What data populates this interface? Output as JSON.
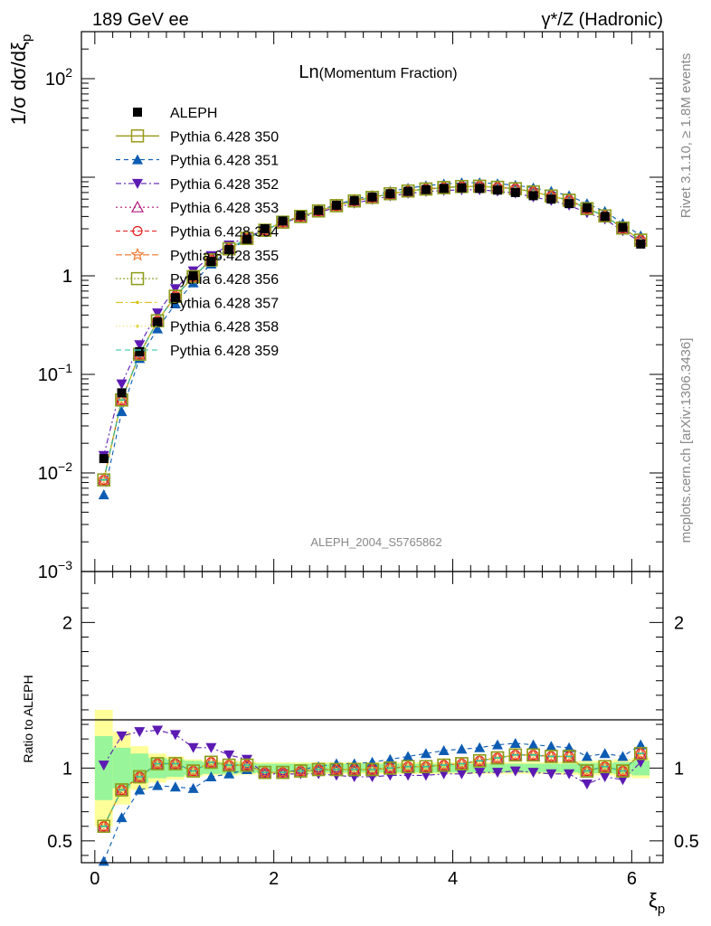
{
  "header": {
    "left": "189 GeV ee",
    "right": "γ*/Z (Hadronic)"
  },
  "side_text": {
    "rivet": "Rivet 3.1.10, ≥ 1.8M events",
    "mcplots": "mcplots.cern.ch [arXiv:1306.3436]"
  },
  "chart_data": {
    "type": "scatter",
    "title": "Ln(Momentum Fraction)",
    "title_main": "Ln",
    "title_sub": "(Momentum Fraction)",
    "analysis_id": "ALEPH_2004_S5765862",
    "xlabel": "ξp",
    "ylabel": "1/σ dσ/dξp",
    "ratio_ylabel": "Ratio to ALEPH",
    "xlim": [
      -0.15,
      6.35
    ],
    "ylim": [
      0.001,
      300
    ],
    "yscale": "log",
    "ratio_ylim": [
      0.35,
      2.35
    ],
    "x_ticks": [
      "0",
      "2",
      "4",
      "6"
    ],
    "y_ticks": [
      "10^-3",
      "10^-2",
      "10^-1",
      "1",
      "10",
      "10^2"
    ],
    "ratio_ticks": [
      "0.5",
      "1",
      "2"
    ],
    "legend_position": "top-left",
    "x": [
      0.1,
      0.3,
      0.5,
      0.7,
      0.9,
      1.1,
      1.3,
      1.5,
      1.7,
      1.9,
      2.1,
      2.3,
      2.5,
      2.7,
      2.9,
      3.1,
      3.3,
      3.5,
      3.7,
      3.9,
      4.1,
      4.3,
      4.5,
      4.7,
      4.9,
      5.1,
      5.3,
      5.5,
      5.7,
      5.9,
      6.1
    ],
    "data": {
      "name": "ALEPH",
      "values": [
        0.014,
        0.065,
        0.17,
        0.34,
        0.6,
        1.0,
        1.4,
        1.85,
        2.35,
        3.0,
        3.6,
        4.1,
        4.6,
        5.2,
        5.8,
        6.3,
        6.8,
        7.2,
        7.5,
        7.7,
        7.8,
        7.7,
        7.4,
        7.0,
        6.5,
        6.0,
        5.4,
        4.9,
        4.0,
        3.1,
        2.1
      ]
    },
    "series": [
      {
        "name": "Pythia 6.428 350",
        "values": [
          0.0085,
          0.055,
          0.16,
          0.35,
          0.62,
          0.98,
          1.45,
          1.88,
          2.4,
          2.9,
          3.5,
          4.0,
          4.55,
          5.15,
          5.75,
          6.25,
          6.8,
          7.25,
          7.6,
          7.85,
          8.05,
          8.1,
          7.9,
          7.65,
          7.1,
          6.45,
          5.85,
          4.8,
          4.05,
          3.05,
          2.3
        ],
        "ratio": [
          0.6,
          0.85,
          0.94,
          1.03,
          1.03,
          0.98,
          1.04,
          1.02,
          1.02,
          0.97,
          0.97,
          0.98,
          0.99,
          0.99,
          0.99,
          0.99,
          1.0,
          1.01,
          1.01,
          1.02,
          1.03,
          1.05,
          1.07,
          1.09,
          1.09,
          1.08,
          1.08,
          0.98,
          1.01,
          0.98,
          1.1
        ]
      },
      {
        "name": "Pythia 6.428 351",
        "values": [
          0.006,
          0.042,
          0.145,
          0.29,
          0.52,
          0.85,
          1.32,
          1.8,
          2.35,
          2.95,
          3.5,
          4.05,
          4.6,
          5.3,
          5.95,
          6.55,
          7.2,
          7.75,
          8.2,
          8.55,
          8.8,
          8.8,
          8.6,
          8.3,
          7.8,
          7.2,
          6.5,
          5.4,
          4.5,
          3.4,
          2.55
        ],
        "ratio": [
          0.36,
          0.66,
          0.85,
          0.88,
          0.87,
          0.86,
          0.94,
          0.96,
          0.99,
          0.96,
          0.97,
          0.99,
          1.01,
          1.03,
          1.03,
          1.04,
          1.06,
          1.08,
          1.1,
          1.12,
          1.13,
          1.14,
          1.16,
          1.17,
          1.16,
          1.15,
          1.14,
          1.08,
          1.1,
          1.08,
          1.16
        ]
      },
      {
        "name": "Pythia 6.428 352",
        "values": [
          0.015,
          0.08,
          0.2,
          0.42,
          0.74,
          1.12,
          1.6,
          2.05,
          2.5,
          2.9,
          3.45,
          3.9,
          4.4,
          4.95,
          5.45,
          5.95,
          6.45,
          6.85,
          7.15,
          7.35,
          7.45,
          7.45,
          7.2,
          6.9,
          6.3,
          5.8,
          5.2,
          4.35,
          3.75,
          2.85,
          2.2
        ],
        "ratio": [
          1.02,
          1.22,
          1.25,
          1.26,
          1.23,
          1.14,
          1.14,
          1.09,
          1.06,
          0.96,
          0.96,
          0.96,
          0.96,
          0.95,
          0.94,
          0.94,
          0.95,
          0.95,
          0.95,
          0.96,
          0.96,
          0.97,
          0.97,
          0.98,
          0.97,
          0.96,
          0.96,
          0.89,
          0.94,
          0.92,
          1.04
        ]
      },
      {
        "name": "Pythia 6.428 353",
        "values": [
          0.0085,
          0.055,
          0.16,
          0.35,
          0.62,
          0.98,
          1.45,
          1.88,
          2.4,
          2.9,
          3.5,
          4.0,
          4.55,
          5.15,
          5.75,
          6.25,
          6.8,
          7.25,
          7.6,
          7.85,
          8.05,
          8.1,
          7.9,
          7.65,
          7.1,
          6.45,
          5.85,
          4.8,
          4.05,
          3.05,
          2.3
        ],
        "ratio": [
          0.6,
          0.85,
          0.94,
          1.03,
          1.03,
          0.98,
          1.04,
          1.02,
          1.02,
          0.97,
          0.97,
          0.98,
          0.99,
          0.99,
          0.99,
          0.99,
          1.0,
          1.01,
          1.01,
          1.02,
          1.03,
          1.05,
          1.07,
          1.09,
          1.09,
          1.08,
          1.08,
          0.98,
          1.01,
          0.98,
          1.1
        ]
      },
      {
        "name": "Pythia 6.428 354",
        "values": [
          0.0085,
          0.055,
          0.16,
          0.35,
          0.62,
          0.98,
          1.45,
          1.88,
          2.4,
          2.9,
          3.5,
          4.0,
          4.55,
          5.15,
          5.75,
          6.25,
          6.8,
          7.25,
          7.6,
          7.85,
          8.05,
          8.1,
          7.9,
          7.65,
          7.1,
          6.45,
          5.85,
          4.8,
          4.05,
          3.05,
          2.3
        ],
        "ratio": [
          0.6,
          0.85,
          0.94,
          1.03,
          1.03,
          0.98,
          1.04,
          1.02,
          1.02,
          0.97,
          0.97,
          0.98,
          0.99,
          0.99,
          0.99,
          0.99,
          1.0,
          1.01,
          1.01,
          1.02,
          1.03,
          1.05,
          1.07,
          1.09,
          1.09,
          1.08,
          1.08,
          0.98,
          1.01,
          0.98,
          1.1
        ]
      },
      {
        "name": "Pythia 6.428 355",
        "values": [
          0.0085,
          0.055,
          0.16,
          0.35,
          0.62,
          0.98,
          1.45,
          1.88,
          2.4,
          2.9,
          3.5,
          4.0,
          4.55,
          5.15,
          5.75,
          6.25,
          6.8,
          7.25,
          7.6,
          7.85,
          8.05,
          8.1,
          7.9,
          7.65,
          7.1,
          6.45,
          5.85,
          4.8,
          4.05,
          3.05,
          2.3
        ],
        "ratio": [
          0.6,
          0.85,
          0.94,
          1.03,
          1.03,
          0.98,
          1.04,
          1.02,
          1.02,
          0.97,
          0.97,
          0.98,
          0.99,
          0.99,
          0.99,
          0.99,
          1.0,
          1.01,
          1.01,
          1.02,
          1.03,
          1.05,
          1.07,
          1.09,
          1.09,
          1.08,
          1.08,
          0.98,
          1.01,
          0.98,
          1.1
        ]
      },
      {
        "name": "Pythia 6.428 356",
        "values": [
          0.0085,
          0.055,
          0.16,
          0.35,
          0.62,
          0.98,
          1.45,
          1.88,
          2.4,
          2.9,
          3.5,
          4.0,
          4.55,
          5.15,
          5.75,
          6.25,
          6.8,
          7.25,
          7.6,
          7.85,
          8.05,
          8.1,
          7.9,
          7.65,
          7.1,
          6.45,
          5.85,
          4.8,
          4.05,
          3.05,
          2.3
        ],
        "ratio": [
          0.6,
          0.85,
          0.94,
          1.03,
          1.03,
          0.98,
          1.04,
          1.02,
          1.02,
          0.97,
          0.97,
          0.98,
          0.99,
          0.99,
          0.99,
          0.99,
          1.0,
          1.01,
          1.01,
          1.02,
          1.03,
          1.05,
          1.07,
          1.09,
          1.09,
          1.08,
          1.08,
          0.98,
          1.01,
          0.98,
          1.1
        ]
      },
      {
        "name": "Pythia 6.428 357",
        "values": [
          0.0085,
          0.055,
          0.16,
          0.35,
          0.62,
          0.98,
          1.45,
          1.88,
          2.4,
          2.9,
          3.5,
          4.0,
          4.55,
          5.15,
          5.75,
          6.25,
          6.8,
          7.25,
          7.6,
          7.85,
          8.05,
          8.1,
          7.9,
          7.65,
          7.1,
          6.45,
          5.85,
          4.8,
          4.05,
          3.05,
          2.3
        ],
        "ratio": [
          0.6,
          0.85,
          0.94,
          1.03,
          1.03,
          0.98,
          1.04,
          1.02,
          1.02,
          0.97,
          0.97,
          0.98,
          0.99,
          0.99,
          0.99,
          0.99,
          1.0,
          1.01,
          1.01,
          1.02,
          1.03,
          1.05,
          1.07,
          1.09,
          1.09,
          1.08,
          1.08,
          0.98,
          1.01,
          0.98,
          1.1
        ]
      },
      {
        "name": "Pythia 6.428 358",
        "values": [
          0.0085,
          0.055,
          0.16,
          0.35,
          0.62,
          0.98,
          1.45,
          1.88,
          2.4,
          2.9,
          3.5,
          4.0,
          4.55,
          5.15,
          5.75,
          6.25,
          6.8,
          7.25,
          7.6,
          7.85,
          8.05,
          8.1,
          7.9,
          7.65,
          7.1,
          6.45,
          5.85,
          4.8,
          4.05,
          3.05,
          2.3
        ],
        "ratio": [
          0.6,
          0.85,
          0.94,
          1.03,
          1.03,
          0.98,
          1.04,
          1.02,
          1.02,
          0.97,
          0.97,
          0.98,
          0.99,
          0.99,
          0.99,
          0.99,
          1.0,
          1.01,
          1.01,
          1.02,
          1.03,
          1.05,
          1.07,
          1.09,
          1.09,
          1.08,
          1.08,
          0.98,
          1.01,
          0.98,
          1.1
        ]
      },
      {
        "name": "Pythia 6.428 359",
        "values": [
          0.0085,
          0.055,
          0.16,
          0.35,
          0.62,
          0.98,
          1.45,
          1.88,
          2.4,
          2.9,
          3.5,
          4.0,
          4.55,
          5.15,
          5.75,
          6.25,
          6.8,
          7.25,
          7.6,
          7.85,
          8.05,
          8.1,
          7.9,
          7.65,
          7.1,
          6.45,
          5.85,
          4.8,
          4.05,
          3.05,
          2.3
        ],
        "ratio": [
          0.6,
          0.85,
          0.94,
          1.03,
          1.03,
          0.98,
          1.04,
          1.02,
          1.02,
          0.97,
          0.97,
          0.98,
          0.99,
          0.99,
          0.99,
          0.99,
          1.0,
          1.01,
          1.01,
          1.02,
          1.03,
          1.05,
          1.07,
          1.09,
          1.09,
          1.08,
          1.08,
          0.98,
          1.01,
          0.98,
          1.1
        ]
      }
    ],
    "band_inner": [
      0.22,
      0.14,
      0.1,
      0.07,
      0.06,
      0.05,
      0.04,
      0.04,
      0.035,
      0.03,
      0.03,
      0.03,
      0.03,
      0.03,
      0.03,
      0.03,
      0.03,
      0.03,
      0.03,
      0.03,
      0.03,
      0.03,
      0.03,
      0.03,
      0.03,
      0.03,
      0.03,
      0.035,
      0.035,
      0.04,
      0.05
    ],
    "band_outer": [
      0.4,
      0.25,
      0.15,
      0.1,
      0.08,
      0.06,
      0.05,
      0.05,
      0.045,
      0.04,
      0.04,
      0.04,
      0.04,
      0.04,
      0.04,
      0.04,
      0.04,
      0.04,
      0.04,
      0.04,
      0.04,
      0.04,
      0.04,
      0.04,
      0.04,
      0.04,
      0.045,
      0.05,
      0.05,
      0.06,
      0.07
    ],
    "colors": {
      "data": "#000000",
      "band_inner": "#99f599",
      "band_outer": "#ffff99",
      "series": [
        "#99991a",
        "#0d5cb3",
        "#5c1ab3",
        "#b31a80",
        "#e61a1a",
        "#f07026",
        "#8c9c1a",
        "#d9c21a",
        "#e6d94d",
        "#26c2a6"
      ]
    }
  }
}
